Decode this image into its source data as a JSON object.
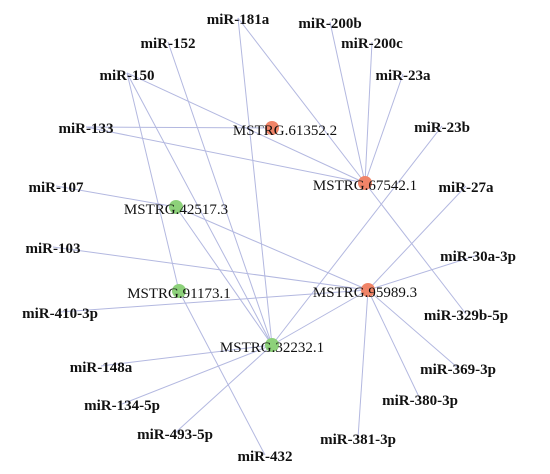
{
  "colors": {
    "edge": "#b3b8e0",
    "up_node": "#f08468",
    "down_node": "#8dd17a",
    "text": "#111111"
  },
  "mirnas": [
    {
      "id": "m1",
      "label": "miR-181a"
    },
    {
      "id": "m2",
      "label": "miR-200b"
    },
    {
      "id": "m3",
      "label": "miR-152"
    },
    {
      "id": "m4",
      "label": "miR-200c"
    },
    {
      "id": "m5",
      "label": "miR-150"
    },
    {
      "id": "m6",
      "label": "miR-23a"
    },
    {
      "id": "m7",
      "label": "miR-133"
    },
    {
      "id": "m8",
      "label": "miR-23b"
    },
    {
      "id": "m9",
      "label": "miR-107"
    },
    {
      "id": "m10",
      "label": "miR-27a"
    },
    {
      "id": "m11",
      "label": "miR-103"
    },
    {
      "id": "m12",
      "label": "miR-30a-3p"
    },
    {
      "id": "m13",
      "label": "miR-410-3p"
    },
    {
      "id": "m14",
      "label": "miR-329b-5p"
    },
    {
      "id": "m15",
      "label": "miR-148a"
    },
    {
      "id": "m16",
      "label": "miR-369-3p"
    },
    {
      "id": "m17",
      "label": "miR-134-5p"
    },
    {
      "id": "m18",
      "label": "miR-380-3p"
    },
    {
      "id": "m19",
      "label": "miR-493-5p"
    },
    {
      "id": "m20",
      "label": "miR-381-3p"
    },
    {
      "id": "m21",
      "label": "miR-432"
    }
  ],
  "mstrgs": [
    {
      "id": "A",
      "label": "MSTRG.61352.2",
      "type": "up"
    },
    {
      "id": "B",
      "label": "MSTRG.67542.1",
      "type": "up"
    },
    {
      "id": "C",
      "label": "MSTRG.42517.3",
      "type": "down"
    },
    {
      "id": "D",
      "label": "MSTRG.91173.1",
      "type": "down"
    },
    {
      "id": "E",
      "label": "MSTRG.95989.3",
      "type": "up"
    },
    {
      "id": "F",
      "label": "MSTRG.32232.1",
      "type": "down"
    }
  ],
  "edges": [
    [
      "m1",
      "B"
    ],
    [
      "m1",
      "F"
    ],
    [
      "m2",
      "B"
    ],
    [
      "m4",
      "B"
    ],
    [
      "m6",
      "B"
    ],
    [
      "m3",
      "F"
    ],
    [
      "m5",
      "B"
    ],
    [
      "m5",
      "D"
    ],
    [
      "m5",
      "F"
    ],
    [
      "m7",
      "A"
    ],
    [
      "m7",
      "B"
    ],
    [
      "m8",
      "F"
    ],
    [
      "m9",
      "C"
    ],
    [
      "m10",
      "E"
    ],
    [
      "m11",
      "E"
    ],
    [
      "m12",
      "E"
    ],
    [
      "m13",
      "E"
    ],
    [
      "m14",
      "B"
    ],
    [
      "m15",
      "F"
    ],
    [
      "m16",
      "E"
    ],
    [
      "m17",
      "F"
    ],
    [
      "m18",
      "E"
    ],
    [
      "m19",
      "F"
    ],
    [
      "m20",
      "E"
    ],
    [
      "m21",
      "D"
    ],
    [
      "C",
      "E"
    ],
    [
      "C",
      "F"
    ],
    [
      "F",
      "E"
    ]
  ]
}
